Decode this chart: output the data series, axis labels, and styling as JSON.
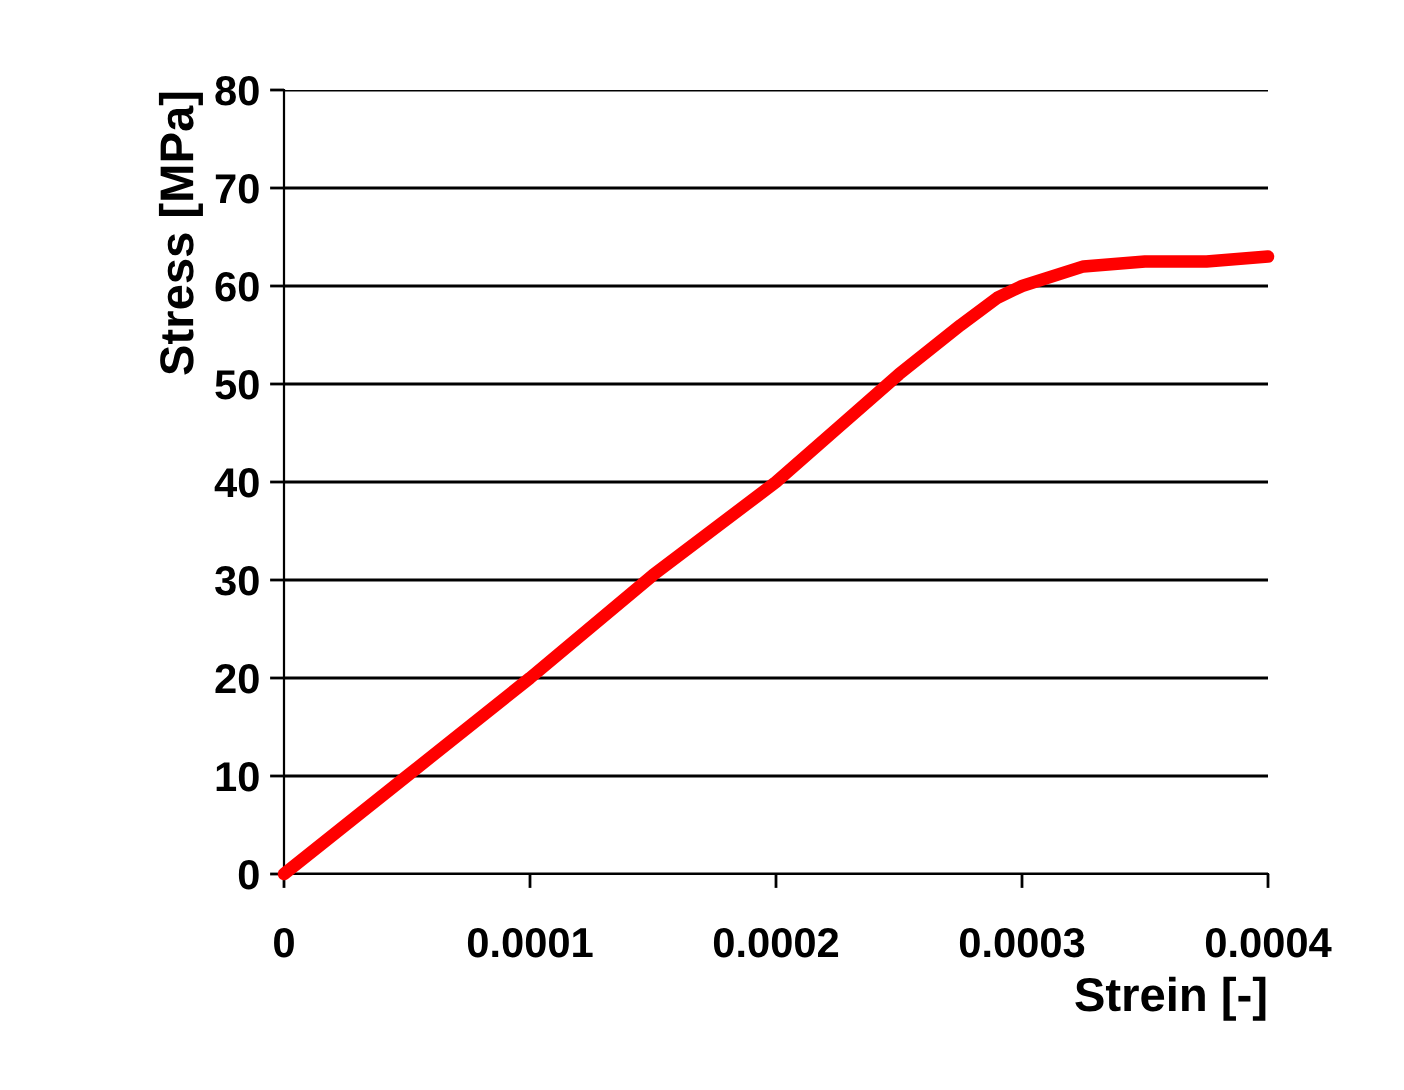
{
  "chart_data": {
    "type": "line",
    "xlabel": "Strein [-]",
    "ylabel": "Stress [MPa]",
    "series": [
      {
        "color": "#ff0000",
        "x": [
          0,
          5e-05,
          0.0001,
          0.00015,
          0.0002,
          0.000225,
          0.00025,
          0.000275,
          0.00029,
          0.0003,
          0.000325,
          0.00035,
          0.000375,
          0.0004
        ],
        "values": [
          0,
          10,
          20,
          30.5,
          40,
          45.5,
          51,
          56,
          58.8,
          60,
          62,
          62.5,
          62.5,
          63
        ]
      }
    ],
    "xlim": [
      0,
      0.0004
    ],
    "xticks": [
      0,
      0.0001,
      0.0002,
      0.0003,
      0.0004
    ],
    "ylim": [
      0,
      80
    ],
    "yticks": [
      0,
      10,
      20,
      30,
      40,
      50,
      60,
      70,
      80
    ],
    "grid": "y",
    "legend": false,
    "marker": "none",
    "line_style": "solid"
  }
}
